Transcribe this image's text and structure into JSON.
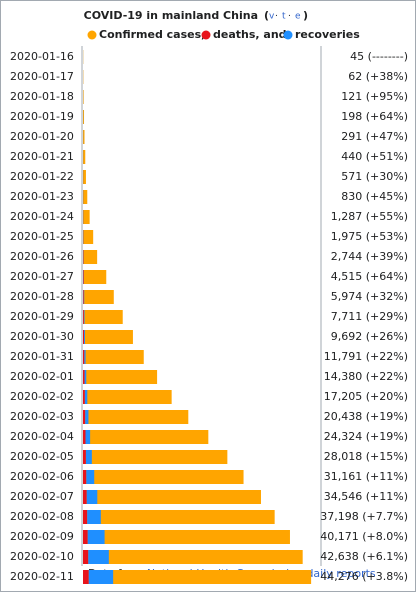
{
  "chart_data": {
    "type": "bar",
    "orientation": "horizontal",
    "title": "COVID-19 in mainland China",
    "title_links": [
      "v",
      "t",
      "e"
    ],
    "categories": [
      "2020-01-16",
      "2020-01-17",
      "2020-01-18",
      "2020-01-19",
      "2020-01-20",
      "2020-01-21",
      "2020-01-22",
      "2020-01-23",
      "2020-01-24",
      "2020-01-25",
      "2020-01-26",
      "2020-01-27",
      "2020-01-28",
      "2020-01-29",
      "2020-01-30",
      "2020-01-31",
      "2020-02-01",
      "2020-02-02",
      "2020-02-03",
      "2020-02-04",
      "2020-02-05",
      "2020-02-06",
      "2020-02-07",
      "2020-02-08",
      "2020-02-09",
      "2020-02-10",
      "2020-02-11"
    ],
    "xlim": [
      0,
      46000
    ],
    "series": [
      {
        "name": "Confirmed cases,",
        "color": "#ffa500",
        "layer": "total",
        "values": [
          45,
          62,
          121,
          198,
          291,
          440,
          571,
          830,
          1287,
          1975,
          2744,
          4515,
          5974,
          7711,
          9692,
          11791,
          14380,
          17205,
          20438,
          24324,
          28018,
          31161,
          34546,
          37198,
          40171,
          42638,
          44276
        ],
        "value_labels": [
          "45 (--------)",
          "62 (+38%)",
          "121 (+95%)",
          "198 (+64%)",
          "291 (+47%)",
          "440 (+51%)",
          "571 (+30%)",
          "830 (+45%)",
          "1,287 (+55%)",
          "1,975 (+53%)",
          "2,744 (+39%)",
          "4,515 (+64%)",
          "5,974 (+32%)",
          "7,711 (+29%)",
          "9,692 (+26%)",
          "11,791 (+22%)",
          "14,380 (+22%)",
          "17,205 (+20%)",
          "20,438 (+19%)",
          "24,324 (+19%)",
          "28,018 (+15%)",
          "31,161 (+11%)",
          "34,546 (+11%)",
          "37,198 (+7.7%)",
          "40,171 (+8.0%)",
          "42,638 (+6.1%)",
          "44,276 (+3.8%)"
        ]
      },
      {
        "name": "deaths, and",
        "color": "#e8141c",
        "layer": "stack",
        "values": [
          2,
          2,
          3,
          3,
          6,
          9,
          17,
          25,
          41,
          56,
          80,
          106,
          132,
          170,
          213,
          259,
          304,
          361,
          425,
          490,
          563,
          636,
          722,
          811,
          908,
          1016,
          1113
        ]
      },
      {
        "name": "recoveries",
        "color": "#1f8fff",
        "layer": "stack",
        "values": [
          12,
          12,
          17,
          25,
          25,
          25,
          28,
          34,
          38,
          49,
          51,
          60,
          103,
          124,
          171,
          243,
          328,
          475,
          632,
          892,
          1153,
          1540,
          2050,
          2649,
          3281,
          3996,
          4740
        ]
      }
    ],
    "footer": {
      "prefix": "Data from",
      "source": "National Health Commission",
      "link": "daily reports"
    }
  }
}
